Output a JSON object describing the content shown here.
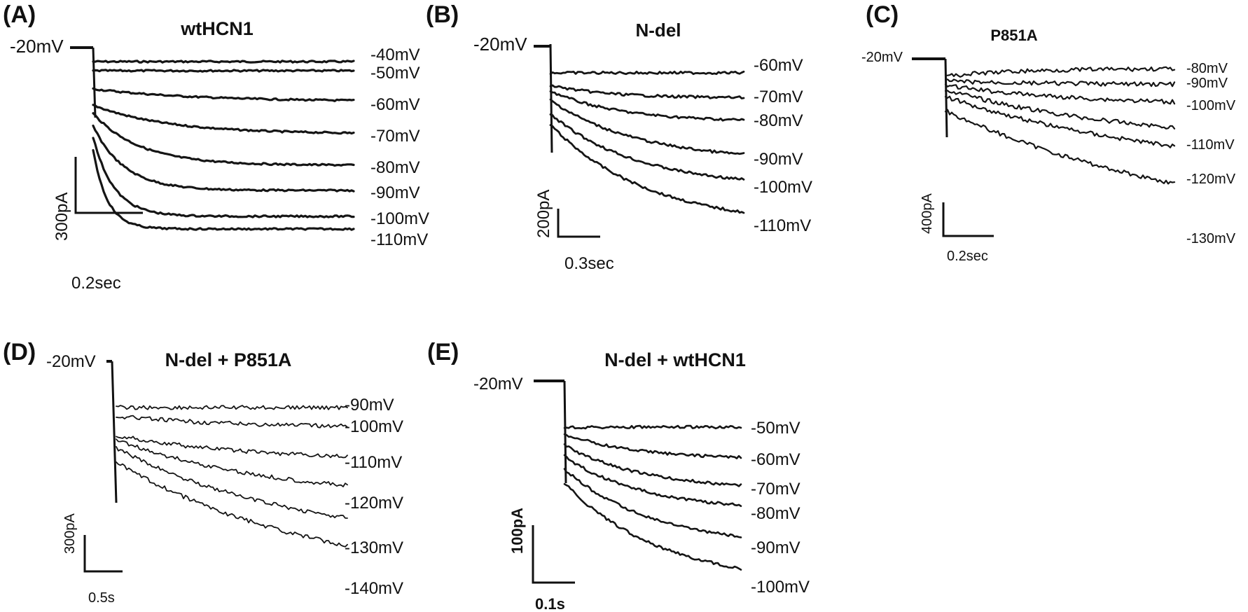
{
  "chart_data": [
    {
      "id": "A",
      "type": "line",
      "panel_label": "(A)",
      "title": "wtHCN1",
      "holding_label": "-20mV",
      "scale_bar": {
        "current": "300pA",
        "time": "0.2sec"
      },
      "series": [
        {
          "name": "-40mV",
          "ss": 0.015,
          "tau": 0.1
        },
        {
          "name": "-50mV",
          "ss": 0.07,
          "tau": 0.16
        },
        {
          "name": "-60mV",
          "ss": 0.24,
          "tau": 0.4
        },
        {
          "name": "-70mV",
          "ss": 0.46,
          "tau": 0.28
        },
        {
          "name": "-80mV",
          "ss": 0.65,
          "tau": 0.18
        },
        {
          "name": "-90mV",
          "ss": 0.78,
          "tau": 0.12
        },
        {
          "name": "-100mV",
          "ss": 0.91,
          "tau": 0.08
        },
        {
          "name": "-110mV",
          "ss": 1.0,
          "tau": 0.055
        }
      ]
    },
    {
      "id": "B",
      "type": "line",
      "panel_label": "(B)",
      "title": "N-del",
      "holding_label": "-20mV",
      "scale_bar": {
        "current": "200pA",
        "time": "0.3sec"
      },
      "series": [
        {
          "name": "-60mV",
          "ss": 0.0,
          "tau": 0.2
        },
        {
          "name": "-70mV",
          "ss": 0.17,
          "tau": 0.3
        },
        {
          "name": "-80mV",
          "ss": 0.3,
          "tau": 0.35
        },
        {
          "name": "-90mV",
          "ss": 0.56,
          "tau": 0.45
        },
        {
          "name": "-100mV",
          "ss": 0.72,
          "tau": 0.45
        },
        {
          "name": "-110mV",
          "ss": 1.0,
          "tau": 0.5
        }
      ]
    },
    {
      "id": "C",
      "type": "line",
      "panel_label": "(C)",
      "title": "P851A",
      "holding_label": "-20mV",
      "scale_bar": {
        "current": "400pA",
        "time": "0.2sec"
      },
      "series": [
        {
          "name": "-80mV",
          "ss": 0.0,
          "tau": 0.3
        },
        {
          "name": "-90mV",
          "ss": 0.07,
          "tau": 0.5
        },
        {
          "name": "-100mV",
          "ss": 0.2,
          "tau": 0.6
        },
        {
          "name": "-110mV",
          "ss": 0.4,
          "tau": 0.8
        },
        {
          "name": "-120mV",
          "ss": 0.58,
          "tau": 1.0
        },
        {
          "name": "-130mV",
          "ss": 1.0,
          "tau": 1.2
        }
      ]
    },
    {
      "id": "D",
      "type": "line",
      "panel_label": "(D)",
      "title": "N-del + P851A",
      "holding_label": "-20mV",
      "scale_bar": {
        "current": "300pA",
        "time": "0.5s"
      },
      "series": [
        {
          "name": "-90mV",
          "ss": 0.0,
          "tau": 0.3
        },
        {
          "name": "-100mV",
          "ss": 0.09,
          "tau": 0.5
        },
        {
          "name": "-110mV",
          "ss": 0.29,
          "tau": 0.6
        },
        {
          "name": "-120mV",
          "ss": 0.5,
          "tau": 0.7
        },
        {
          "name": "-130mV",
          "ss": 0.76,
          "tau": 0.8
        },
        {
          "name": "-140mV",
          "ss": 1.0,
          "tau": 0.9
        }
      ]
    },
    {
      "id": "E",
      "type": "line",
      "panel_label": "(E)",
      "title": "N-del + wtHCN1",
      "holding_label": "-20mV",
      "scale_bar": {
        "current": "100pA",
        "time": "0.1s"
      },
      "series": [
        {
          "name": "-50mV",
          "ss": 0.0,
          "tau": 0.3
        },
        {
          "name": "-60mV",
          "ss": 0.2,
          "tau": 0.4
        },
        {
          "name": "-70mV",
          "ss": 0.37,
          "tau": 0.45
        },
        {
          "name": "-80mV",
          "ss": 0.53,
          "tau": 0.45
        },
        {
          "name": "-90mV",
          "ss": 0.75,
          "tau": 0.5
        },
        {
          "name": "-100mV",
          "ss": 1.0,
          "tau": 0.55
        }
      ]
    }
  ]
}
